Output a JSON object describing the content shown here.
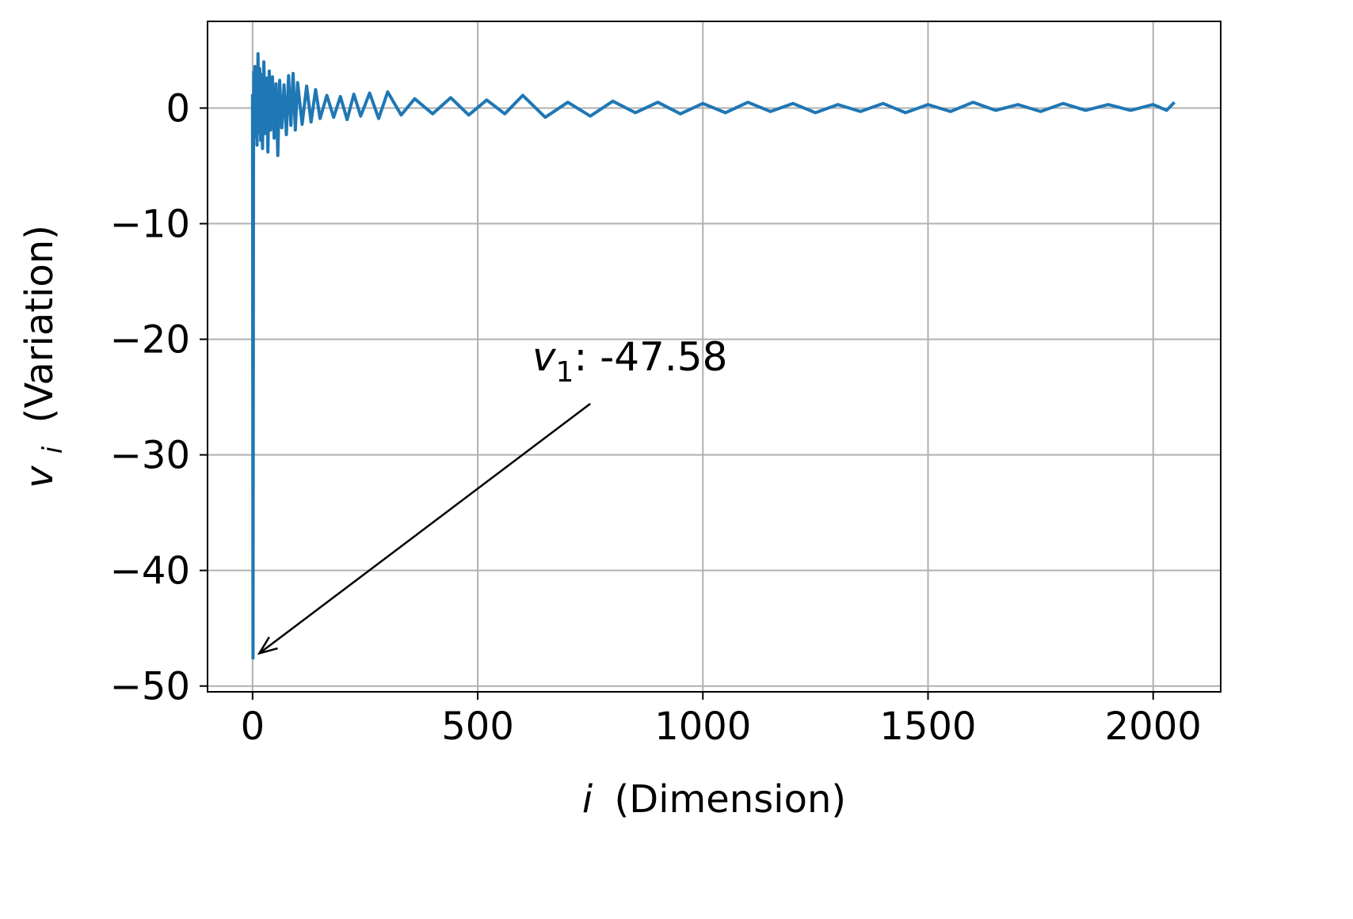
{
  "colors": {
    "line": "#1f77b4",
    "grid": "#b0b0b0",
    "axes": "#000000"
  },
  "chart_data": {
    "type": "line",
    "title": "",
    "xlabel": {
      "var": "i",
      "text": "(Dimension)"
    },
    "ylabel": {
      "var": "v",
      "sub": "i",
      "text": "(Variation)"
    },
    "xlim": [
      -100,
      2150
    ],
    "ylim": [
      -50.5,
      7.5
    ],
    "xticks": [
      0,
      500,
      1000,
      1500,
      2000
    ],
    "xtick_labels": [
      "0",
      "500",
      "1000",
      "1500",
      "2000"
    ],
    "yticks": [
      0,
      -10,
      -20,
      -30,
      -40,
      -50
    ],
    "ytick_labels": [
      "0",
      "−10",
      "−20",
      "−30",
      "−40",
      "−50"
    ],
    "grid": true,
    "legend": "none",
    "series": [
      {
        "n_points": 2048,
        "x": [
          0,
          1,
          2,
          3,
          4,
          5,
          6,
          8,
          10,
          12,
          14,
          16,
          18,
          20,
          22,
          25,
          28,
          31,
          34,
          37,
          40,
          44,
          48,
          52,
          56,
          60,
          65,
          70,
          75,
          80,
          85,
          90,
          95,
          100,
          110,
          120,
          130,
          140,
          150,
          165,
          180,
          195,
          210,
          225,
          240,
          260,
          280,
          300,
          330,
          360,
          400,
          440,
          480,
          520,
          560,
          600,
          650,
          700,
          750,
          800,
          850,
          900,
          950,
          1000,
          1050,
          1100,
          1150,
          1200,
          1250,
          1300,
          1350,
          1400,
          1450,
          1500,
          1550,
          1600,
          1650,
          1700,
          1750,
          1800,
          1850,
          1900,
          1950,
          2000,
          2030,
          2047
        ],
        "y": [
          1.2,
          -47.58,
          -4.5,
          3.1,
          -2.5,
          3.6,
          -1.8,
          2.5,
          -3.2,
          4.7,
          -2.1,
          3.4,
          -2.8,
          2.9,
          -3.5,
          4.0,
          -2.2,
          2.6,
          -3.8,
          3.2,
          -1.9,
          2.7,
          -2.6,
          2.1,
          -4.1,
          2.4,
          -1.7,
          2.0,
          -2.3,
          2.8,
          -1.5,
          3.0,
          -1.9,
          2.2,
          -1.4,
          1.9,
          -1.2,
          1.6,
          -0.9,
          1.1,
          -0.8,
          1.0,
          -1.0,
          1.2,
          -0.7,
          1.3,
          -0.9,
          1.4,
          -0.6,
          0.8,
          -0.5,
          0.9,
          -0.6,
          0.7,
          -0.5,
          1.1,
          -0.8,
          0.5,
          -0.7,
          0.6,
          -0.4,
          0.5,
          -0.5,
          0.4,
          -0.4,
          0.5,
          -0.3,
          0.4,
          -0.4,
          0.3,
          -0.3,
          0.4,
          -0.4,
          0.3,
          -0.3,
          0.5,
          -0.2,
          0.3,
          -0.3,
          0.4,
          -0.2,
          0.3,
          -0.2,
          0.3,
          -0.2,
          0.5
        ]
      }
    ],
    "annotation": {
      "var": "v",
      "sub": "1",
      "text": ": -47.58",
      "x": 1,
      "y": -47.58,
      "text_x": 750,
      "text_y": -22.7
    }
  }
}
